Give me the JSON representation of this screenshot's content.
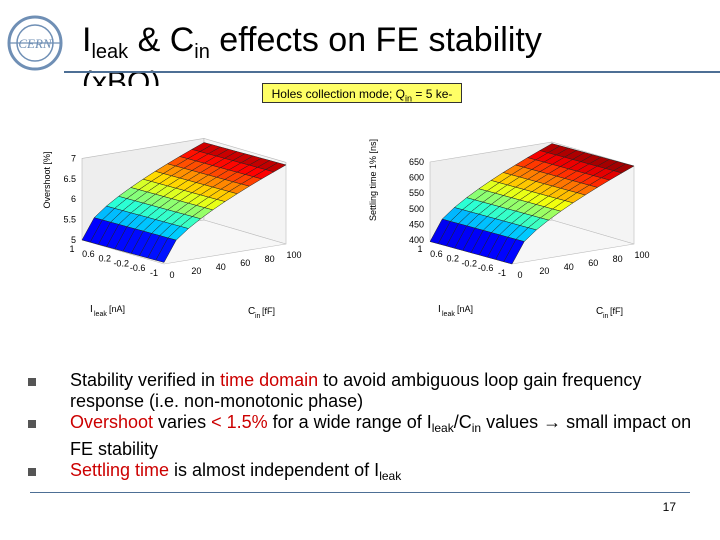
{
  "header": {
    "title_I": "I",
    "title_leak_sub": "leak",
    "title_amp_C": " & C",
    "title_in_sub": "in",
    "title_rest": " effects on FE stability",
    "title_line2": "(xBQ)"
  },
  "note": {
    "prefix": "Holes collection mode; Q",
    "sub": "in",
    "suffix": " = 5 ke-"
  },
  "chart_data": [
    {
      "type": "surface",
      "zlabel": "Overshoot [%]",
      "z_ticks": [
        "5",
        "5.5",
        "6",
        "6.5",
        "7"
      ],
      "zlim": [
        5,
        7
      ],
      "x_axis": {
        "label": "I",
        "label_sub": "leak",
        "label_unit": " [nA]",
        "ticks": [
          "-1",
          "-0.6",
          "-0.2",
          "0.2",
          "0.6",
          "1"
        ]
      },
      "y_axis": {
        "label": "C",
        "label_sub": "in",
        "label_unit": " [fF]",
        "ticks": [
          "0",
          "20",
          "40",
          "60",
          "80",
          "100"
        ]
      },
      "z_min_corner": 5.0,
      "z_max_corner": 6.9
    },
    {
      "type": "surface",
      "zlabel": "Settling time 1% [ns]",
      "z_ticks": [
        "400",
        "450",
        "500",
        "550",
        "600",
        "650"
      ],
      "zlim": [
        400,
        650
      ],
      "x_axis": {
        "label": "I",
        "label_sub": "leak",
        "label_unit": " [nA]",
        "ticks": [
          "-1",
          "-0.6",
          "-0.2",
          "0.2",
          "0.6",
          "1"
        ]
      },
      "y_axis": {
        "label": "C",
        "label_sub": "in",
        "label_unit": " [fF]",
        "ticks": [
          "0",
          "20",
          "40",
          "60",
          "80",
          "100"
        ]
      },
      "z_min_corner": 395,
      "z_max_corner": 645
    }
  ],
  "bullets": {
    "b1_pre": "Stability verified in ",
    "b1_red": "time domain",
    "b1_post": " to avoid ambiguous loop gain frequency response (i.e. non-monotonic phase)",
    "b2_red1": "Overshoot",
    "b2_mid": " varies ",
    "b2_red2": "< 1.5%",
    "b2_post1": " for a wide range of I",
    "b2_sub1": "leak",
    "b2_post2": "/C",
    "b2_sub2": "in",
    "b2_post3": " values → small impact on FE stability",
    "b3_red": "Settling time",
    "b3_post": " is almost independent of I",
    "b3_sub": "leak"
  },
  "footer": {
    "page_number": "17"
  }
}
